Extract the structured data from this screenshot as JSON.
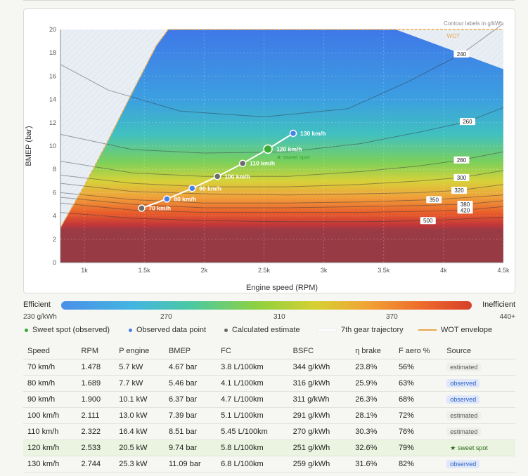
{
  "chart_data": {
    "type": "heatmap",
    "xlabel": "Engine speed (RPM)",
    "ylabel": "BMEP (bar)",
    "xlim": [
      800,
      4500
    ],
    "ylim": [
      0,
      20
    ],
    "x_ticks": [
      {
        "v": 1000,
        "label": "1k"
      },
      {
        "v": 1500,
        "label": "1.5k"
      },
      {
        "v": 2000,
        "label": "2k"
      },
      {
        "v": 2500,
        "label": "2.5k"
      },
      {
        "v": 3000,
        "label": "3k"
      },
      {
        "v": 3500,
        "label": "3.5k"
      },
      {
        "v": 4000,
        "label": "4k"
      },
      {
        "v": 4500,
        "label": "4.5k"
      }
    ],
    "y_ticks": [
      0,
      2,
      4,
      6,
      8,
      10,
      12,
      14,
      16,
      18,
      20
    ],
    "grid": true,
    "corner_note": "Contour labels in g/kWh",
    "wot_label": "WOT",
    "wot_envelope": [
      [
        800,
        3
      ],
      [
        1000,
        6.6
      ],
      [
        1200,
        10.5
      ],
      [
        1400,
        14.6
      ],
      [
        1600,
        18.6
      ],
      [
        1700,
        20
      ],
      [
        4500,
        20
      ]
    ],
    "wot_right": [
      [
        3600,
        20
      ],
      [
        4500,
        16.6
      ]
    ],
    "contours": [
      {
        "label": "240",
        "lx": 4150,
        "ly": 17.9,
        "pts": [
          [
            800,
            17
          ],
          [
            1200,
            14.8
          ],
          [
            1800,
            13
          ],
          [
            2500,
            12.5
          ],
          [
            3200,
            13.2
          ],
          [
            3700,
            15.5
          ],
          [
            4150,
            17.9
          ],
          [
            4500,
            20.5
          ]
        ]
      },
      {
        "label": "260",
        "lx": 4200,
        "ly": 12.1,
        "pts": [
          [
            800,
            11
          ],
          [
            1400,
            9.7
          ],
          [
            2000,
            9.4
          ],
          [
            2700,
            9.5
          ],
          [
            3300,
            10.2
          ],
          [
            3800,
            11.2
          ],
          [
            4200,
            12.1
          ],
          [
            4500,
            13.3
          ]
        ]
      },
      {
        "label": "280",
        "lx": 4150,
        "ly": 8.8,
        "pts": [
          [
            800,
            8.7
          ],
          [
            1400,
            7.7
          ],
          [
            2000,
            7.4
          ],
          [
            2700,
            7.4
          ],
          [
            3300,
            7.8
          ],
          [
            3800,
            8.3
          ],
          [
            4150,
            8.8
          ],
          [
            4500,
            9.5
          ]
        ]
      },
      {
        "label": "300",
        "lx": 4150,
        "ly": 7.3,
        "pts": [
          [
            800,
            7.5
          ],
          [
            1400,
            6.8
          ],
          [
            2000,
            6.5
          ],
          [
            2700,
            6.5
          ],
          [
            3300,
            6.7
          ],
          [
            3800,
            7
          ],
          [
            4150,
            7.3
          ],
          [
            4500,
            7.9
          ]
        ]
      },
      {
        "label": "320",
        "lx": 4130,
        "ly": 6.2,
        "pts": [
          [
            800,
            6.8
          ],
          [
            1400,
            6.1
          ],
          [
            2000,
            5.9
          ],
          [
            2700,
            5.8
          ],
          [
            3300,
            5.9
          ],
          [
            3800,
            6
          ],
          [
            4130,
            6.2
          ],
          [
            4500,
            6.7
          ]
        ]
      },
      {
        "label": "350",
        "lx": 3920,
        "ly": 5.4,
        "pts": [
          [
            800,
            6
          ],
          [
            1400,
            5.4
          ],
          [
            2000,
            5.1
          ],
          [
            2700,
            5.1
          ],
          [
            3300,
            5.2
          ],
          [
            3920,
            5.4
          ],
          [
            4500,
            5.8
          ]
        ]
      },
      {
        "label": "380",
        "lx": 4180,
        "ly": 5.0,
        "pts": [
          [
            800,
            5.6
          ],
          [
            1400,
            5
          ],
          [
            2000,
            4.7
          ],
          [
            2700,
            4.7
          ],
          [
            3300,
            4.8
          ],
          [
            3800,
            4.9
          ],
          [
            4180,
            5
          ],
          [
            4500,
            5.3
          ]
        ]
      },
      {
        "label": "420",
        "lx": 4180,
        "ly": 4.5,
        "pts": [
          [
            800,
            5.1
          ],
          [
            1400,
            4.5
          ],
          [
            2000,
            4.3
          ],
          [
            2700,
            4.3
          ],
          [
            3300,
            4.3
          ],
          [
            3800,
            4.4
          ],
          [
            4180,
            4.5
          ],
          [
            4500,
            4.8
          ]
        ]
      },
      {
        "label": "500",
        "lx": 3870,
        "ly": 3.6,
        "pts": [
          [
            800,
            4.3
          ],
          [
            1400,
            3.8
          ],
          [
            2000,
            3.6
          ],
          [
            2700,
            3.5
          ],
          [
            3300,
            3.5
          ],
          [
            3870,
            3.6
          ],
          [
            4500,
            3.9
          ]
        ]
      }
    ],
    "points": [
      {
        "label": "70 km/h",
        "rpm": 1478,
        "bmep": 4.67,
        "kind": "estimated"
      },
      {
        "label": "80 km/h",
        "rpm": 1689,
        "bmep": 5.46,
        "kind": "observed"
      },
      {
        "label": "90 km/h",
        "rpm": 1900,
        "bmep": 6.37,
        "kind": "observed"
      },
      {
        "label": "100 km/h",
        "rpm": 2111,
        "bmep": 7.39,
        "kind": "estimated"
      },
      {
        "label": "110 km/h",
        "rpm": 2322,
        "bmep": 8.51,
        "kind": "estimated"
      },
      {
        "label": "120 km/h",
        "rpm": 2533,
        "bmep": 9.74,
        "kind": "sweet"
      },
      {
        "label": "130 km/h",
        "rpm": 2744,
        "bmep": 11.09,
        "kind": "observed"
      }
    ],
    "sweet_label": "★ sweet spot",
    "colorbar": {
      "left": "Efficient",
      "right": "Inefficient",
      "ticks": [
        "230 g/kWh",
        "270",
        "310",
        "370",
        "440+"
      ]
    },
    "legend": [
      "Sweet spot (observed)",
      "Observed data point",
      "Calculated estimate",
      "7th gear trajectory",
      "WOT envelope"
    ]
  },
  "colors": {
    "sweet": "#3aaa35",
    "observed": "#4a7ee8",
    "estimated": "#6b6b6b",
    "trajectory": "#ffffff",
    "wot": "#e8a84a"
  },
  "table": {
    "headers": [
      "Speed",
      "RPM",
      "P engine",
      "BMEP",
      "FC",
      "BSFC",
      "η brake",
      "F aero %",
      "Source"
    ],
    "rows": [
      {
        "cells": [
          "70 km/h",
          "1.478",
          "5.7 kW",
          "4.67 bar",
          "3.8 L/100km",
          "344 g/kWh",
          "23.8%",
          "56%"
        ],
        "source": "estimated",
        "kind": "estimated"
      },
      {
        "cells": [
          "80 km/h",
          "1.689",
          "7.7 kW",
          "5.46 bar",
          "4.1 L/100km",
          "316 g/kWh",
          "25.9%",
          "63%"
        ],
        "source": "observed",
        "kind": "observed"
      },
      {
        "cells": [
          "90 km/h",
          "1.900",
          "10.1 kW",
          "6.37 bar",
          "4.7 L/100km",
          "311 g/kWh",
          "26.3%",
          "68%"
        ],
        "source": "observed",
        "kind": "observed"
      },
      {
        "cells": [
          "100 km/h",
          "2.111",
          "13.0 kW",
          "7.39 bar",
          "5.1 L/100km",
          "291 g/kWh",
          "28.1%",
          "72%"
        ],
        "source": "estimated",
        "kind": "estimated"
      },
      {
        "cells": [
          "110 km/h",
          "2.322",
          "16.4 kW",
          "8.51 bar",
          "5.45 L/100km",
          "270 g/kWh",
          "30.3%",
          "76%"
        ],
        "source": "estimated",
        "kind": "estimated"
      },
      {
        "cells": [
          "120 km/h",
          "2.533",
          "20.5 kW",
          "9.74 bar",
          "5.8 L/100km",
          "251 g/kWh",
          "32.6%",
          "79%"
        ],
        "source": "★ sweet spot",
        "kind": "sweet"
      },
      {
        "cells": [
          "130 km/h",
          "2.744",
          "25.3 kW",
          "11.09 bar",
          "6.8 L/100km",
          "259 g/kWh",
          "31.6%",
          "82%"
        ],
        "source": "observed",
        "kind": "observed"
      }
    ]
  }
}
